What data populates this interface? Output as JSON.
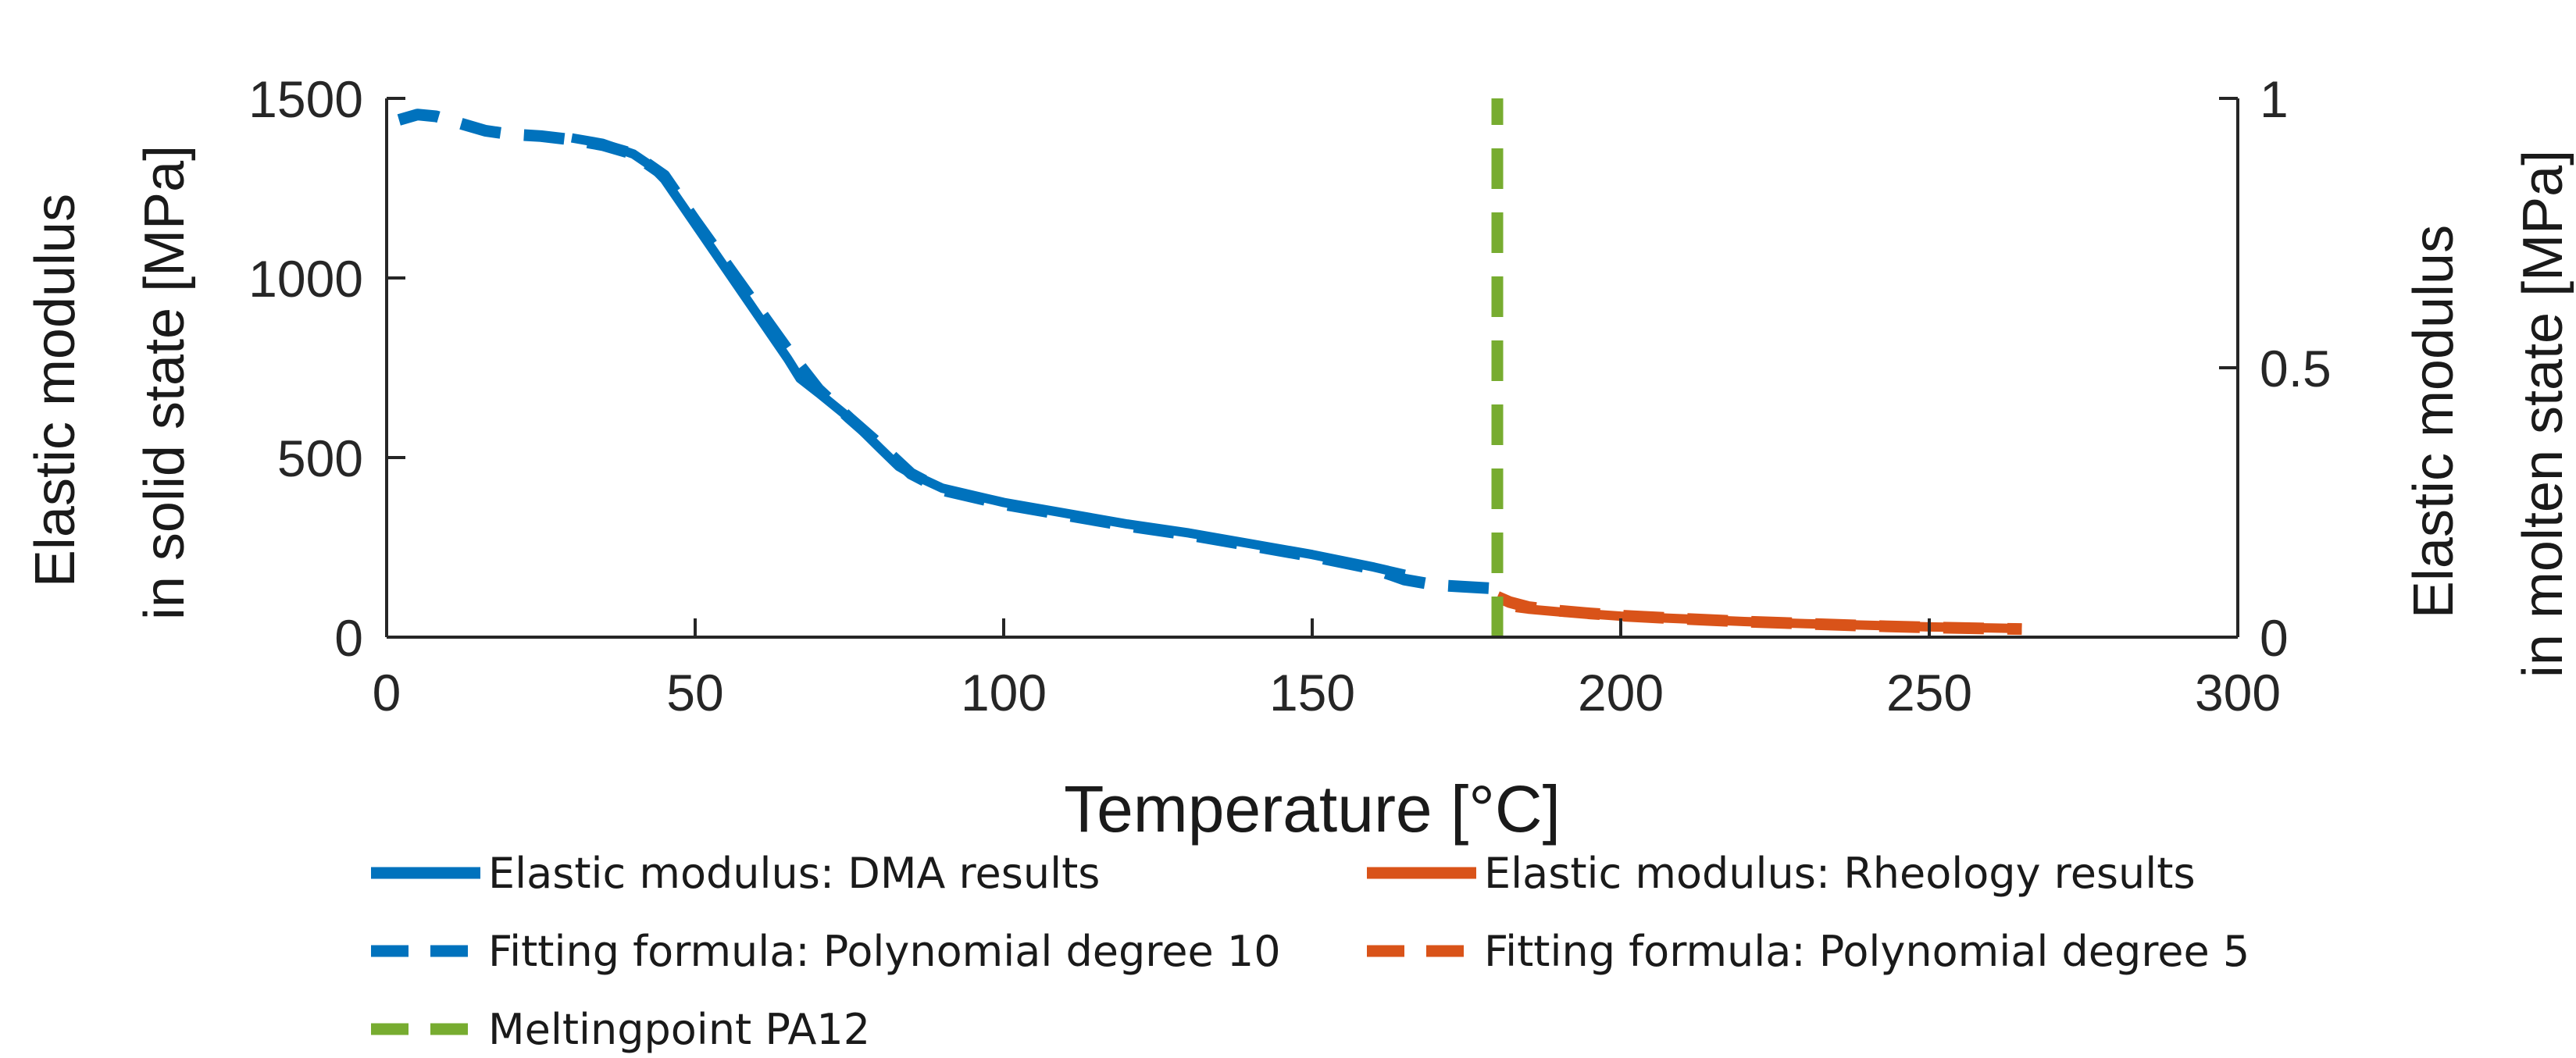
{
  "chart_data": {
    "type": "line",
    "title": "",
    "xlabel": "Temperature [°C]",
    "ylabel_left": [
      "Elastic modulus",
      "in solid state [MPa]"
    ],
    "ylabel_right": [
      "Elastic modulus",
      "in molten state [MPa]"
    ],
    "xlim": [
      0,
      300
    ],
    "ylim_left": [
      0,
      1500
    ],
    "ylim_right": [
      0,
      1
    ],
    "xticks": [
      0,
      50,
      100,
      150,
      200,
      250,
      300
    ],
    "yticks_left": [
      0,
      500,
      1000,
      1500
    ],
    "yticks_right": [
      0,
      0.5,
      1
    ],
    "ytick_labels_right": [
      "0",
      "0.5",
      "1"
    ],
    "grid": false,
    "legend_position": "bottom",
    "colors": {
      "dma": "#0072BD",
      "rheology": "#D95319",
      "melting": "#77AC30"
    },
    "series": [
      {
        "name": "Elastic modulus: DMA results",
        "axis": "left",
        "color": "#0072BD",
        "style": "solid",
        "x": [
          30,
          35,
          40,
          43,
          45,
          50,
          55,
          60,
          65,
          67,
          70,
          75,
          80,
          83,
          85,
          90,
          95,
          100,
          110,
          120,
          130,
          140,
          150,
          160,
          165
        ],
        "y": [
          1390,
          1375,
          1345,
          1310,
          1275,
          1150,
          1025,
          900,
          775,
          720,
          680,
          610,
          525,
          475,
          455,
          415,
          395,
          375,
          345,
          315,
          290,
          260,
          230,
          195,
          175
        ]
      },
      {
        "name": "Fitting formula:  Polynomial degree 10",
        "axis": "left",
        "color": "#0072BD",
        "style": "dashed",
        "x": [
          2,
          5,
          8,
          12,
          16,
          20,
          25,
          30,
          35,
          40,
          45,
          50,
          55,
          60,
          65,
          70,
          75,
          80,
          85,
          90,
          100,
          110,
          120,
          130,
          140,
          150,
          160,
          165,
          170,
          175,
          180
        ],
        "y": [
          1440,
          1455,
          1450,
          1430,
          1410,
          1400,
          1395,
          1385,
          1370,
          1345,
          1285,
          1160,
          1040,
          920,
          800,
          690,
          610,
          535,
          455,
          410,
          370,
          340,
          310,
          285,
          255,
          225,
          190,
          160,
          145,
          140,
          135
        ]
      },
      {
        "name": "Elastic modulus: Rheology results",
        "axis": "right",
        "color": "#D95319",
        "style": "solid",
        "x": [
          183,
          185,
          190,
          195,
          200,
          210,
          220,
          230,
          240,
          250,
          260,
          265
        ],
        "y": [
          0.055,
          0.052,
          0.047,
          0.043,
          0.039,
          0.034,
          0.029,
          0.025,
          0.022,
          0.019,
          0.017,
          0.016
        ]
      },
      {
        "name": "Fitting formula:  Polynomial degree 5",
        "axis": "right",
        "color": "#D95319",
        "style": "dashed",
        "x": [
          180,
          182,
          185,
          190,
          195,
          200,
          210,
          220,
          230,
          240,
          250,
          260,
          265
        ],
        "y": [
          0.075,
          0.065,
          0.056,
          0.049,
          0.044,
          0.04,
          0.034,
          0.029,
          0.025,
          0.021,
          0.018,
          0.016,
          0.015
        ]
      },
      {
        "name": "Meltingpoint PA12",
        "axis": "left",
        "color": "#77AC30",
        "style": "dashed",
        "x": [
          180,
          180
        ],
        "y": [
          0,
          1500
        ]
      }
    ]
  }
}
